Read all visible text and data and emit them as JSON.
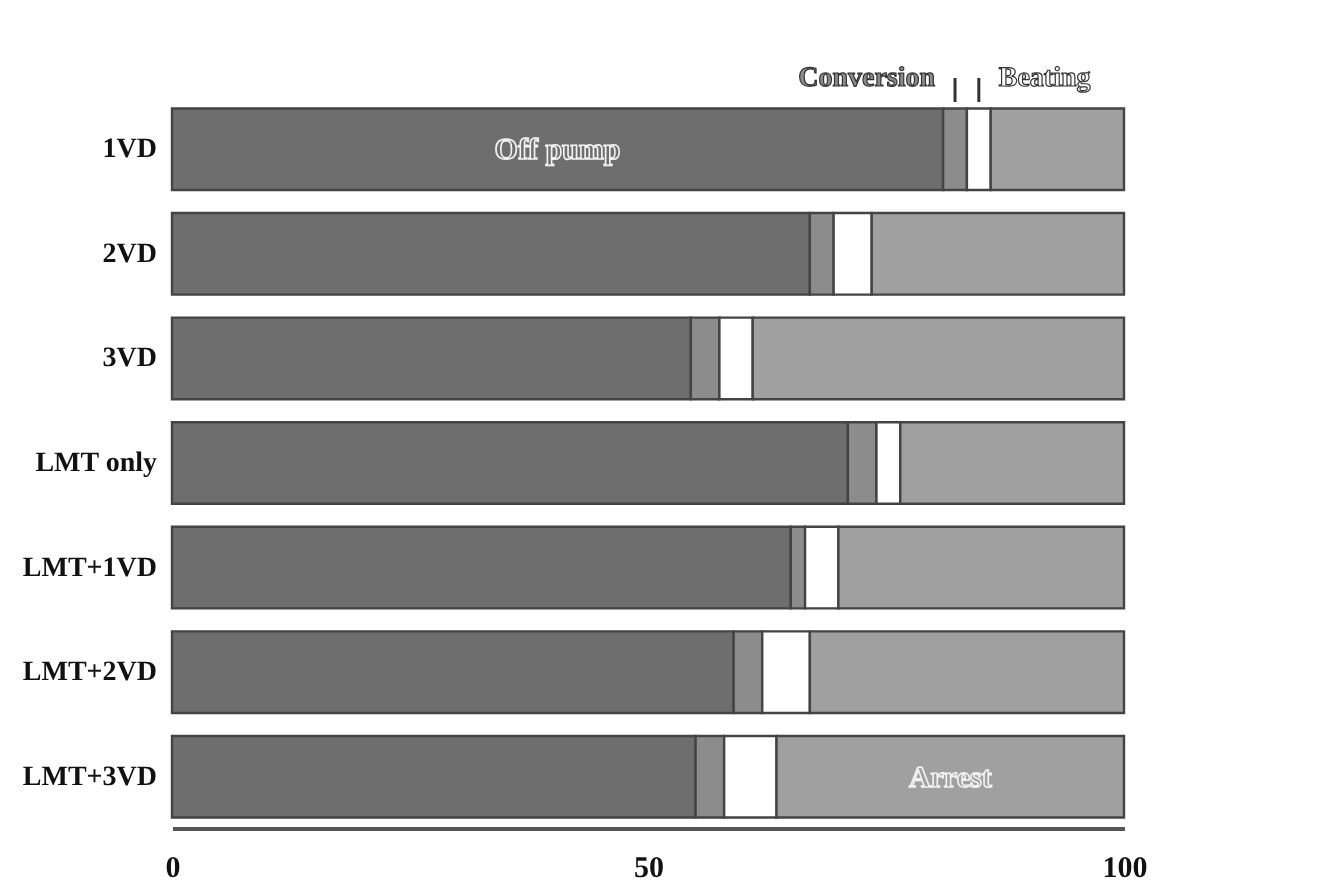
{
  "chart_data": {
    "type": "bar",
    "orientation": "horizontal",
    "stacked": true,
    "categories": [
      "1VD",
      "2VD",
      "3VD",
      "LMT only",
      "LMT+1VD",
      "LMT+2VD",
      "LMT+3VD"
    ],
    "series": [
      {
        "name": "Off pump",
        "color": "#6e6e6e",
        "values": [
          81,
          67,
          54.5,
          71,
          65,
          59,
          55
        ]
      },
      {
        "name": "Conversion",
        "color": "#8c8c8c",
        "values": [
          2.5,
          2.5,
          3,
          3,
          1.5,
          3,
          3
        ]
      },
      {
        "name": "Beating",
        "color": "#ffffff",
        "values": [
          2.5,
          4,
          3.5,
          2.5,
          3.5,
          5,
          5.5
        ]
      },
      {
        "name": "Arrest",
        "color": "#a0a0a0",
        "values": [
          14,
          26.5,
          39,
          23.5,
          30,
          33,
          36.5
        ]
      }
    ],
    "xlim": [
      0,
      100
    ],
    "xticks": [
      0,
      50,
      100
    ],
    "grid": false
  }
}
